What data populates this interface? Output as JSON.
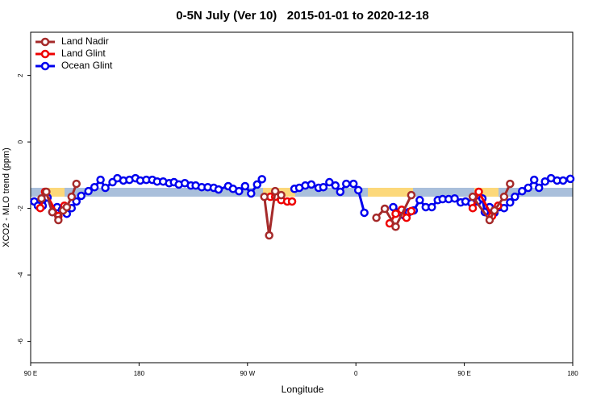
{
  "chart_data": {
    "type": "line",
    "title": "0-5N July (Ver 10)   2015-01-01 to 2020-12-18",
    "x_label": "Longitude",
    "y_label": "XCO2 - MLO trend (ppm)",
    "xlim": [
      90,
      540
    ],
    "ylim": [
      -6.64,
      3.3
    ],
    "xticks": [
      {
        "value": 90,
        "label": "90 E"
      },
      {
        "value": 180,
        "label": "180"
      },
      {
        "value": 270,
        "label": "90 W"
      },
      {
        "value": 360,
        "label": "0"
      },
      {
        "value": 450,
        "label": "90 E"
      },
      {
        "value": 540,
        "label": "180"
      }
    ],
    "yticks": [
      -6,
      -4,
      -2,
      0,
      2
    ],
    "legend": "top-left",
    "series": [
      {
        "name": "Land Nadir",
        "color": "#a52a2a",
        "x": [
          99,
          103,
          108,
          113,
          117,
          120,
          124,
          128,
          null,
          284,
          288,
          293,
          298,
          null,
          377,
          384,
          393,
          406,
          null,
          457,
          471,
          475,
          483,
          488
        ],
        "values": [
          -1.7,
          -1.5,
          -2.11,
          -2.35,
          -2.06,
          -1.96,
          -1.65,
          -1.26,
          null,
          -1.65,
          -2.81,
          -1.48,
          -1.6,
          null,
          -2.28,
          -2.01,
          -2.55,
          -1.6,
          null,
          -1.65,
          -2.35,
          -2.06,
          -1.65,
          -1.26
        ]
      },
      {
        "name": "Land Glint",
        "color": "#ee0000",
        "x": [
          98,
          102,
          113,
          118,
          null,
          289,
          293,
          298,
          303,
          307,
          null,
          388,
          393,
          398,
          402,
          406,
          null,
          457,
          462,
          473,
          478
        ],
        "values": [
          -1.99,
          -1.5,
          -2.23,
          -1.92,
          null,
          -1.65,
          -1.65,
          -1.75,
          -1.79,
          -1.79,
          null,
          -2.45,
          -2.16,
          -2.04,
          -2.28,
          -2.08,
          null,
          -1.99,
          -1.5,
          -2.23,
          -1.92
        ]
      },
      {
        "name": "Ocean Glint",
        "color": "#0000ee",
        "x": [
          93,
          96,
          100,
          104,
          108,
          112,
          116,
          120,
          124,
          128,
          132,
          138,
          143,
          148,
          152,
          158,
          162,
          167,
          172,
          177,
          181,
          186,
          191,
          195,
          200,
          205,
          209,
          213,
          218,
          223,
          227,
          232,
          237,
          242,
          246,
          254,
          258,
          263,
          268,
          273,
          278,
          282,
          null,
          309,
          313,
          318,
          323,
          329,
          333,
          338,
          343,
          347,
          352,
          358,
          362,
          367,
          null,
          391,
          396,
          400,
          404,
          408,
          413,
          418,
          423,
          428,
          432,
          437,
          442,
          447,
          451,
          456,
          461,
          465,
          467,
          471,
          475,
          479,
          483,
          488,
          492,
          498,
          503,
          508,
          512,
          517,
          522,
          527,
          532,
          538
        ],
        "values": [
          -1.79,
          -1.92,
          -1.92,
          -1.67,
          -2.11,
          -1.96,
          -2.04,
          -2.16,
          -1.99,
          -1.79,
          -1.62,
          -1.48,
          -1.36,
          -1.14,
          -1.38,
          -1.21,
          -1.09,
          -1.16,
          -1.14,
          -1.09,
          -1.16,
          -1.14,
          -1.14,
          -1.19,
          -1.19,
          -1.24,
          -1.21,
          -1.28,
          -1.24,
          -1.31,
          -1.31,
          -1.36,
          -1.36,
          -1.38,
          -1.43,
          -1.33,
          -1.41,
          -1.48,
          -1.33,
          -1.55,
          -1.28,
          -1.12,
          null,
          -1.41,
          -1.38,
          -1.31,
          -1.28,
          -1.38,
          -1.36,
          -1.21,
          -1.31,
          -1.5,
          -1.26,
          -1.26,
          -1.45,
          -2.13,
          null,
          -1.96,
          -2.11,
          -2.21,
          -2.11,
          -2.06,
          -1.75,
          -1.96,
          -1.96,
          -1.75,
          -1.72,
          -1.72,
          -1.7,
          -1.82,
          -1.79,
          -1.84,
          -1.79,
          -1.7,
          -2.11,
          -1.96,
          -2.13,
          -1.96,
          -1.99,
          -1.82,
          -1.65,
          -1.48,
          -1.38,
          -1.14,
          -1.38,
          -1.19,
          -1.09,
          -1.16,
          -1.16,
          -1.11
        ]
      }
    ]
  }
}
